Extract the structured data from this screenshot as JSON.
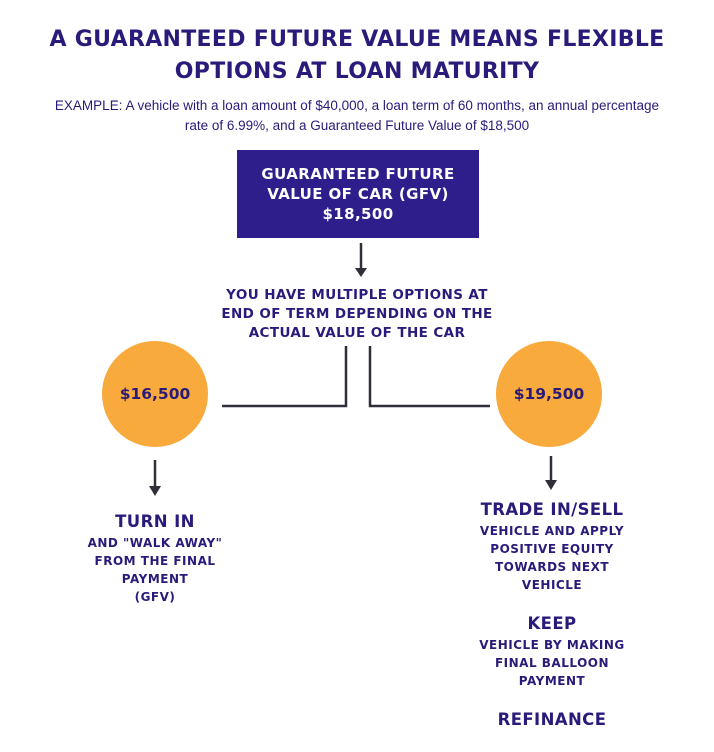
{
  "title_line1": "A GUARANTEED FUTURE VALUE MEANS FLEXIBLE",
  "title_line2": "OPTIONS AT LOAN MATURITY",
  "example_line1": "EXAMPLE: A vehicle with a loan amount of $40,000, a loan term of 60 months, an annual percentage",
  "example_line2": "rate of 6.99%, and a Guaranteed Future Value of $18,500",
  "gfv_box": {
    "line1": "GUARANTEED FUTURE",
    "line2": "VALUE OF CAR (GFV)",
    "amount": "$18,500"
  },
  "options": {
    "line1": "YOU HAVE MULTIPLE OPTIONS AT",
    "line2": "END OF TERM DEPENDING ON THE",
    "line3": "ACTUAL VALUE OF THE CAR"
  },
  "left_branch": {
    "value": "$16,500",
    "heading": "TURN IN",
    "line1": "AND \"WALK AWAY\"",
    "line2": "FROM THE FINAL",
    "line3": "PAYMENT",
    "line4": "(GFV)"
  },
  "right_branch": {
    "value": "$19,500",
    "trade_heading": "TRADE IN/SELL",
    "trade_line1": "VEHICLE AND APPLY",
    "trade_line2": "POSITIVE EQUITY",
    "trade_line3": "TOWARDS NEXT",
    "trade_line4": "VEHICLE",
    "keep_heading": "KEEP",
    "keep_line1": "VEHICLE BY MAKING",
    "keep_line2": "FINAL BALLOON",
    "keep_line3": "PAYMENT",
    "refinance_heading": "REFINANCE"
  },
  "colors": {
    "navy": "#2d1e8c",
    "text": "#2a1a7a",
    "orange": "#f8aa3c",
    "connector": "#2f2f3a"
  }
}
